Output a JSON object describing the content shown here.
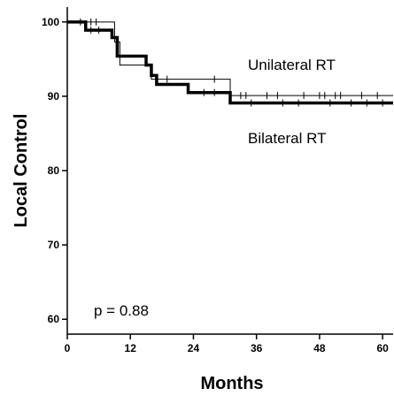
{
  "chart_data": {
    "type": "line",
    "title": "",
    "xlabel": "Months",
    "ylabel": "Local Control",
    "xlim": [
      0,
      62
    ],
    "ylim": [
      58,
      102
    ],
    "xticks": [
      0,
      12,
      24,
      36,
      48,
      60
    ],
    "yticks": [
      60,
      70,
      80,
      90,
      100
    ],
    "grid": false,
    "series": [
      {
        "name": "Unilateral RT",
        "color": "#000000",
        "line": "thin",
        "step": [
          [
            0,
            100
          ],
          [
            3,
            100
          ],
          [
            8,
            100
          ],
          [
            9,
            97.3
          ],
          [
            10,
            94.2
          ],
          [
            15,
            94.2
          ],
          [
            16,
            92.3
          ],
          [
            31,
            92.3
          ],
          [
            31,
            90.1
          ],
          [
            62,
            90.1
          ]
        ],
        "censored": [
          [
            2.5,
            100
          ],
          [
            4.5,
            100
          ],
          [
            5.5,
            100
          ],
          [
            17,
            92.3
          ],
          [
            19,
            92.3
          ],
          [
            28,
            92.3
          ],
          [
            33,
            90.1
          ],
          [
            34,
            90.1
          ],
          [
            38,
            90.1
          ],
          [
            40,
            90.1
          ],
          [
            45,
            90.1
          ],
          [
            48,
            90.1
          ],
          [
            49,
            90.1
          ],
          [
            51,
            90.1
          ],
          [
            52,
            90.1
          ],
          [
            56,
            90.1
          ],
          [
            59,
            90.1
          ]
        ]
      },
      {
        "name": "Bilateral RT",
        "color": "#000000",
        "line": "thick",
        "step": [
          [
            0,
            100
          ],
          [
            3.5,
            100
          ],
          [
            3.5,
            98.9
          ],
          [
            8,
            98.9
          ],
          [
            8.5,
            97.9
          ],
          [
            9.5,
            97.9
          ],
          [
            9.5,
            95.4
          ],
          [
            15,
            95.4
          ],
          [
            15,
            94.2
          ],
          [
            16,
            94.2
          ],
          [
            16,
            92.8
          ],
          [
            17,
            92.8
          ],
          [
            17,
            91.6
          ],
          [
            23,
            91.6
          ],
          [
            23,
            90.5
          ],
          [
            31,
            90.5
          ],
          [
            31,
            89.1
          ],
          [
            62,
            89.1
          ]
        ],
        "censored": [
          [
            4.5,
            98.9
          ],
          [
            6,
            98.9
          ],
          [
            26,
            90.5
          ],
          [
            28,
            90.5
          ],
          [
            35,
            89.1
          ],
          [
            41,
            89.1
          ],
          [
            44,
            89.1
          ],
          [
            50,
            89.1
          ],
          [
            54,
            89.1
          ],
          [
            57,
            89.1
          ],
          [
            60,
            89.1
          ]
        ]
      }
    ],
    "annotations": {
      "unilateral_label": "Unilateral RT",
      "bilateral_label": "Bilateral RT",
      "p_value": "p = 0.88"
    }
  }
}
